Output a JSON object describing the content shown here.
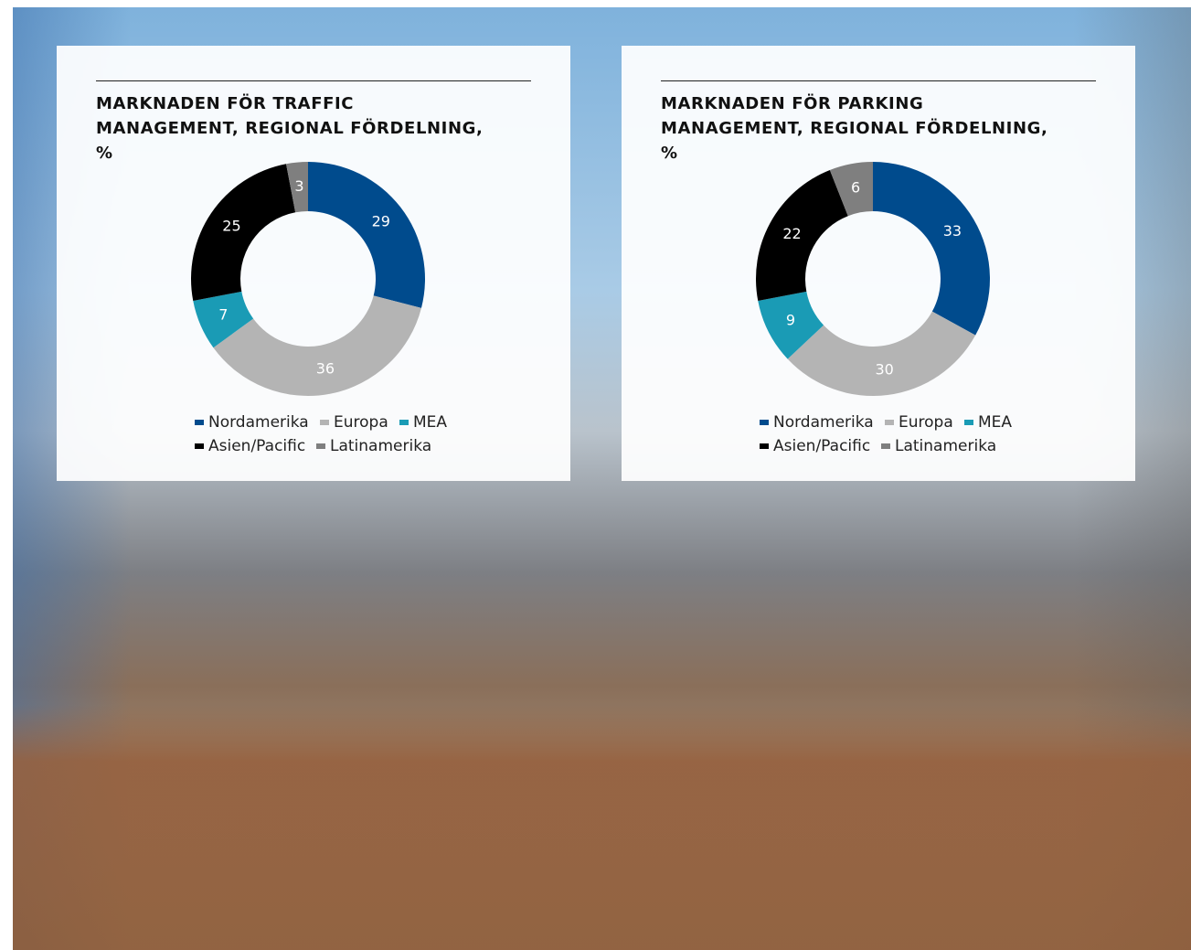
{
  "chart_data": [
    {
      "type": "pie",
      "title": "MARKNADEN FÖR TRAFFIC MANAGEMENT, REGIONAL FÖRDELNING, %",
      "categories": [
        "Nordamerika",
        "Europa",
        "MEA",
        "Asien/Pacific",
        "Latinamerika"
      ],
      "values": [
        29,
        36,
        7,
        25,
        3
      ],
      "colors": [
        "#004b8d",
        "#b4b4b4",
        "#1a9bb5",
        "#000000",
        "#7f7f7f"
      ]
    },
    {
      "type": "pie",
      "title": "MARKNADEN FÖR PARKING MANAGEMENT, REGIONAL FÖRDELNING, %",
      "categories": [
        "Nordamerika",
        "Europa",
        "MEA",
        "Asien/Pacific",
        "Latinamerika"
      ],
      "values": [
        33,
        30,
        9,
        22,
        6
      ],
      "colors": [
        "#004b8d",
        "#b4b4b4",
        "#1a9bb5",
        "#000000",
        "#7f7f7f"
      ]
    }
  ]
}
